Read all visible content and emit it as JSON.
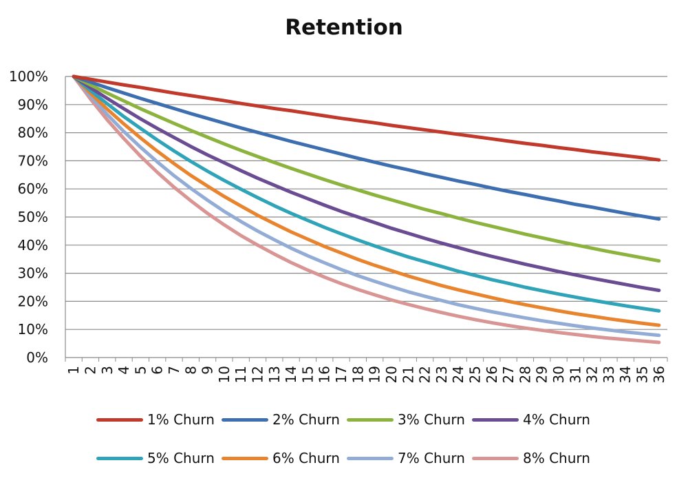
{
  "chart_data": {
    "type": "line",
    "title": "Retention",
    "xlabel": "",
    "ylabel": "",
    "x": [
      1,
      2,
      3,
      4,
      5,
      6,
      7,
      8,
      9,
      10,
      11,
      12,
      13,
      14,
      15,
      16,
      17,
      18,
      19,
      20,
      21,
      22,
      23,
      24,
      25,
      26,
      27,
      28,
      29,
      30,
      31,
      32,
      33,
      34,
      35,
      36
    ],
    "y_ticks": [
      "0%",
      "10%",
      "20%",
      "30%",
      "40%",
      "50%",
      "60%",
      "70%",
      "80%",
      "90%",
      "100%"
    ],
    "ylim": [
      0,
      1
    ],
    "grid": true,
    "legend_position": "bottom",
    "series": [
      {
        "name": "1% Churn",
        "color": "#c0392b",
        "values": [
          1.0,
          0.99,
          0.98,
          0.97,
          0.961,
          0.951,
          0.941,
          0.932,
          0.923,
          0.914,
          0.904,
          0.895,
          0.886,
          0.878,
          0.869,
          0.86,
          0.851,
          0.843,
          0.835,
          0.826,
          0.818,
          0.81,
          0.802,
          0.794,
          0.786,
          0.778,
          0.77,
          0.762,
          0.755,
          0.747,
          0.74,
          0.732,
          0.725,
          0.718,
          0.711,
          0.703
        ]
      },
      {
        "name": "2% Churn",
        "color": "#3d6fb0",
        "values": [
          1.0,
          0.98,
          0.96,
          0.941,
          0.922,
          0.904,
          0.886,
          0.868,
          0.851,
          0.834,
          0.817,
          0.801,
          0.785,
          0.769,
          0.754,
          0.739,
          0.724,
          0.709,
          0.695,
          0.681,
          0.668,
          0.654,
          0.641,
          0.628,
          0.616,
          0.603,
          0.591,
          0.58,
          0.568,
          0.557,
          0.545,
          0.535,
          0.524,
          0.513,
          0.503,
          0.493
        ]
      },
      {
        "name": "3% Churn",
        "color": "#8db33f",
        "values": [
          1.0,
          0.97,
          0.941,
          0.913,
          0.885,
          0.859,
          0.833,
          0.808,
          0.784,
          0.76,
          0.737,
          0.715,
          0.694,
          0.673,
          0.653,
          0.633,
          0.614,
          0.596,
          0.578,
          0.561,
          0.544,
          0.527,
          0.512,
          0.496,
          0.481,
          0.467,
          0.453,
          0.439,
          0.426,
          0.413,
          0.401,
          0.389,
          0.377,
          0.366,
          0.355,
          0.344
        ]
      },
      {
        "name": "4% Churn",
        "color": "#6a4c93",
        "values": [
          1.0,
          0.96,
          0.922,
          0.885,
          0.849,
          0.815,
          0.783,
          0.751,
          0.721,
          0.693,
          0.665,
          0.638,
          0.613,
          0.588,
          0.565,
          0.542,
          0.52,
          0.5,
          0.48,
          0.46,
          0.442,
          0.424,
          0.407,
          0.391,
          0.375,
          0.36,
          0.346,
          0.332,
          0.319,
          0.306,
          0.294,
          0.282,
          0.271,
          0.26,
          0.249,
          0.239
        ]
      },
      {
        "name": "5% Churn",
        "color": "#2fa3b8",
        "values": [
          1.0,
          0.95,
          0.903,
          0.857,
          0.815,
          0.774,
          0.735,
          0.698,
          0.663,
          0.63,
          0.599,
          0.569,
          0.54,
          0.513,
          0.488,
          0.463,
          0.44,
          0.418,
          0.397,
          0.377,
          0.358,
          0.341,
          0.324,
          0.307,
          0.292,
          0.277,
          0.264,
          0.25,
          0.238,
          0.226,
          0.215,
          0.204,
          0.194,
          0.184,
          0.175,
          0.166
        ]
      },
      {
        "name": "6% Churn",
        "color": "#e8832e",
        "values": [
          1.0,
          0.94,
          0.884,
          0.831,
          0.781,
          0.734,
          0.69,
          0.648,
          0.61,
          0.573,
          0.539,
          0.506,
          0.476,
          0.447,
          0.421,
          0.395,
          0.372,
          0.349,
          0.328,
          0.309,
          0.29,
          0.273,
          0.256,
          0.241,
          0.227,
          0.213,
          0.2,
          0.188,
          0.177,
          0.166,
          0.156,
          0.147,
          0.138,
          0.13,
          0.122,
          0.115
        ]
      },
      {
        "name": "7% Churn",
        "color": "#93acd6",
        "values": [
          1.0,
          0.93,
          0.865,
          0.804,
          0.748,
          0.696,
          0.647,
          0.602,
          0.56,
          0.52,
          0.484,
          0.45,
          0.419,
          0.389,
          0.362,
          0.337,
          0.313,
          0.291,
          0.271,
          0.252,
          0.234,
          0.218,
          0.203,
          0.188,
          0.175,
          0.163,
          0.152,
          0.141,
          0.131,
          0.122,
          0.113,
          0.105,
          0.098,
          0.091,
          0.085,
          0.079
        ]
      },
      {
        "name": "8% Churn",
        "color": "#d99594",
        "values": [
          1.0,
          0.92,
          0.846,
          0.779,
          0.716,
          0.659,
          0.606,
          0.558,
          0.513,
          0.472,
          0.434,
          0.4,
          0.368,
          0.338,
          0.311,
          0.286,
          0.263,
          0.242,
          0.223,
          0.205,
          0.189,
          0.174,
          0.16,
          0.147,
          0.135,
          0.124,
          0.114,
          0.105,
          0.097,
          0.089,
          0.082,
          0.075,
          0.069,
          0.064,
          0.059,
          0.054
        ]
      }
    ]
  }
}
